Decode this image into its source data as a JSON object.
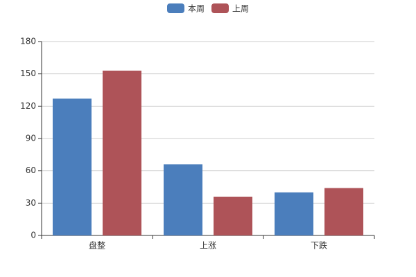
{
  "chart_data": {
    "type": "bar",
    "categories": [
      "盘整",
      "上涨",
      "下跌"
    ],
    "series": [
      {
        "name": "本周",
        "color": "#4b7ebc",
        "values": [
          127,
          66,
          40
        ]
      },
      {
        "name": "上周",
        "color": "#ae5358",
        "values": [
          153,
          36,
          44
        ]
      }
    ],
    "ylim": [
      0,
      180
    ],
    "yticks": [
      0,
      30,
      60,
      90,
      120,
      150,
      180
    ],
    "grid": true,
    "legend": "top"
  }
}
